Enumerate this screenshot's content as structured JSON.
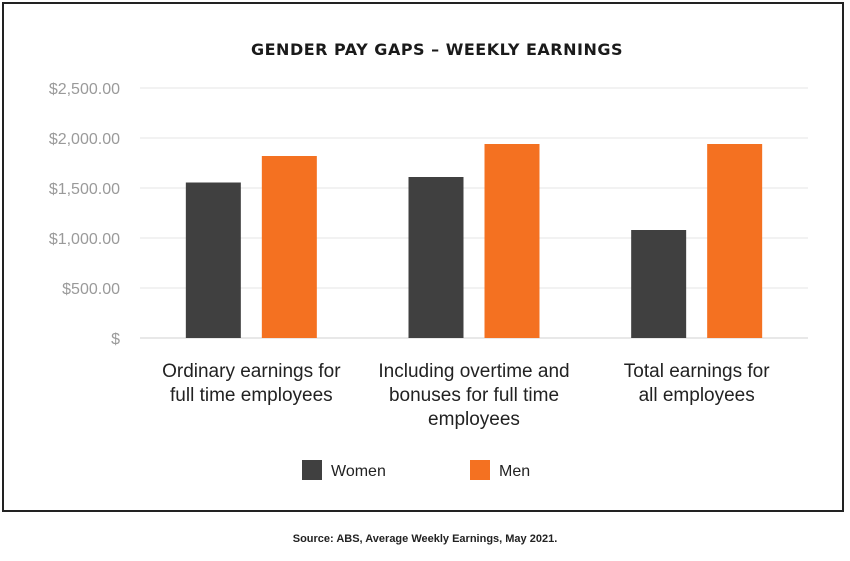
{
  "chart_data": {
    "type": "bar",
    "title": "GENDER PAY GAPS – WEEKLY EARNINGS",
    "categories": [
      [
        "Ordinary earnings for",
        "full time employees"
      ],
      [
        "Including overtime and",
        "bonuses for full time",
        "employees"
      ],
      [
        "Total earnings for",
        "all employees"
      ]
    ],
    "series": [
      {
        "name": "Women",
        "color": "#404040",
        "values": [
          1555,
          1610,
          1080
        ]
      },
      {
        "name": "Men",
        "color": "#f47121",
        "values": [
          1820,
          1940,
          1940
        ]
      }
    ],
    "yticks": [
      "$",
      "$500.00",
      "$1,000.00",
      "$1,500.00",
      "$2,000.00",
      "$2,500.00"
    ],
    "ylim": [
      0,
      2500
    ],
    "grid": true,
    "legend_position": "bottom"
  },
  "source": "Source: ABS, Average Weekly Earnings, May 2021."
}
